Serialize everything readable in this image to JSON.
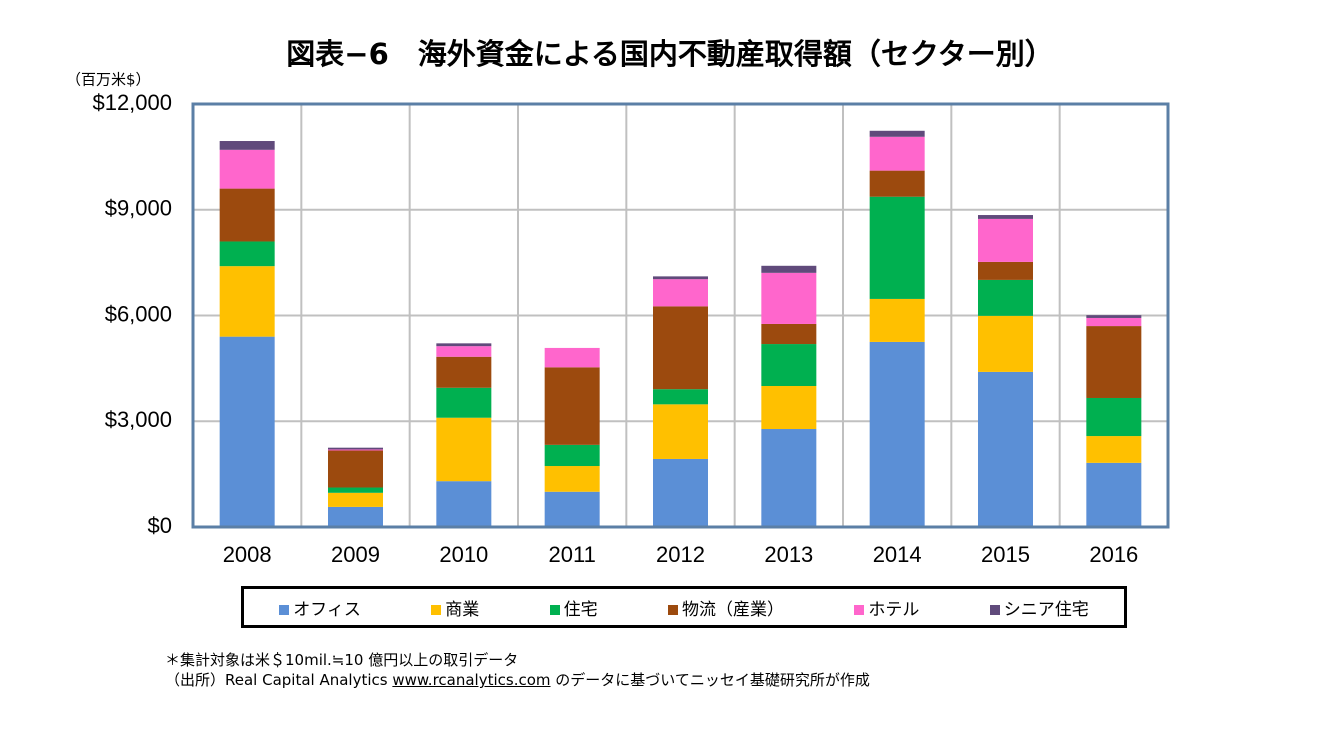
{
  "chart_data": {
    "type": "stacked_bar",
    "title": "図表−6　海外資金による国内不動産取得額（セクター別）",
    "y_unit_label": "（百万米$）",
    "categories": [
      "2008",
      "2009",
      "2010",
      "2011",
      "2012",
      "2013",
      "2014",
      "2015",
      "2016"
    ],
    "series": [
      {
        "name": "オフィス",
        "color": "#5b8fd6",
        "values": [
          5400,
          570,
          1300,
          1000,
          1930,
          2780,
          5250,
          4400,
          1820
        ]
      },
      {
        "name": "商業",
        "color": "#ffc000",
        "values": [
          2000,
          400,
          1800,
          730,
          1550,
          1220,
          1220,
          1590,
          760
        ]
      },
      {
        "name": "住宅",
        "color": "#00b050",
        "values": [
          700,
          150,
          850,
          600,
          430,
          1190,
          2900,
          1020,
          1080
        ]
      },
      {
        "name": "物流（産業）",
        "color": "#9c4a0e",
        "values": [
          1500,
          1050,
          880,
          2200,
          2350,
          570,
          740,
          510,
          2040
        ]
      },
      {
        "name": "ホテル",
        "color": "#ff66cc",
        "values": [
          1100,
          30,
          300,
          550,
          770,
          1450,
          960,
          1220,
          230
        ]
      },
      {
        "name": "シニア住宅",
        "color": "#604a7b",
        "values": [
          250,
          50,
          80,
          0,
          80,
          200,
          170,
          110,
          80
        ]
      }
    ],
    "ylim": [
      0,
      12000
    ],
    "yticks": [
      {
        "value": 0,
        "label": "$0"
      },
      {
        "value": 3000,
        "label": "$3,000"
      },
      {
        "value": 6000,
        "label": "$6,000"
      },
      {
        "value": 9000,
        "label": "$9,000"
      },
      {
        "value": 12000,
        "label": "$12,000"
      }
    ],
    "grid": true,
    "legend": "bottom"
  },
  "notes": {
    "criteria": "＊集計対象は米＄10mil.≒10 億円以上の取引データ",
    "source_prefix": "（出所）Real Capital Analytics",
    "source_url": "www.rcanalytics.com",
    "source_suffix": "のデータに基づいてニッセイ基礎研究所が作成"
  }
}
